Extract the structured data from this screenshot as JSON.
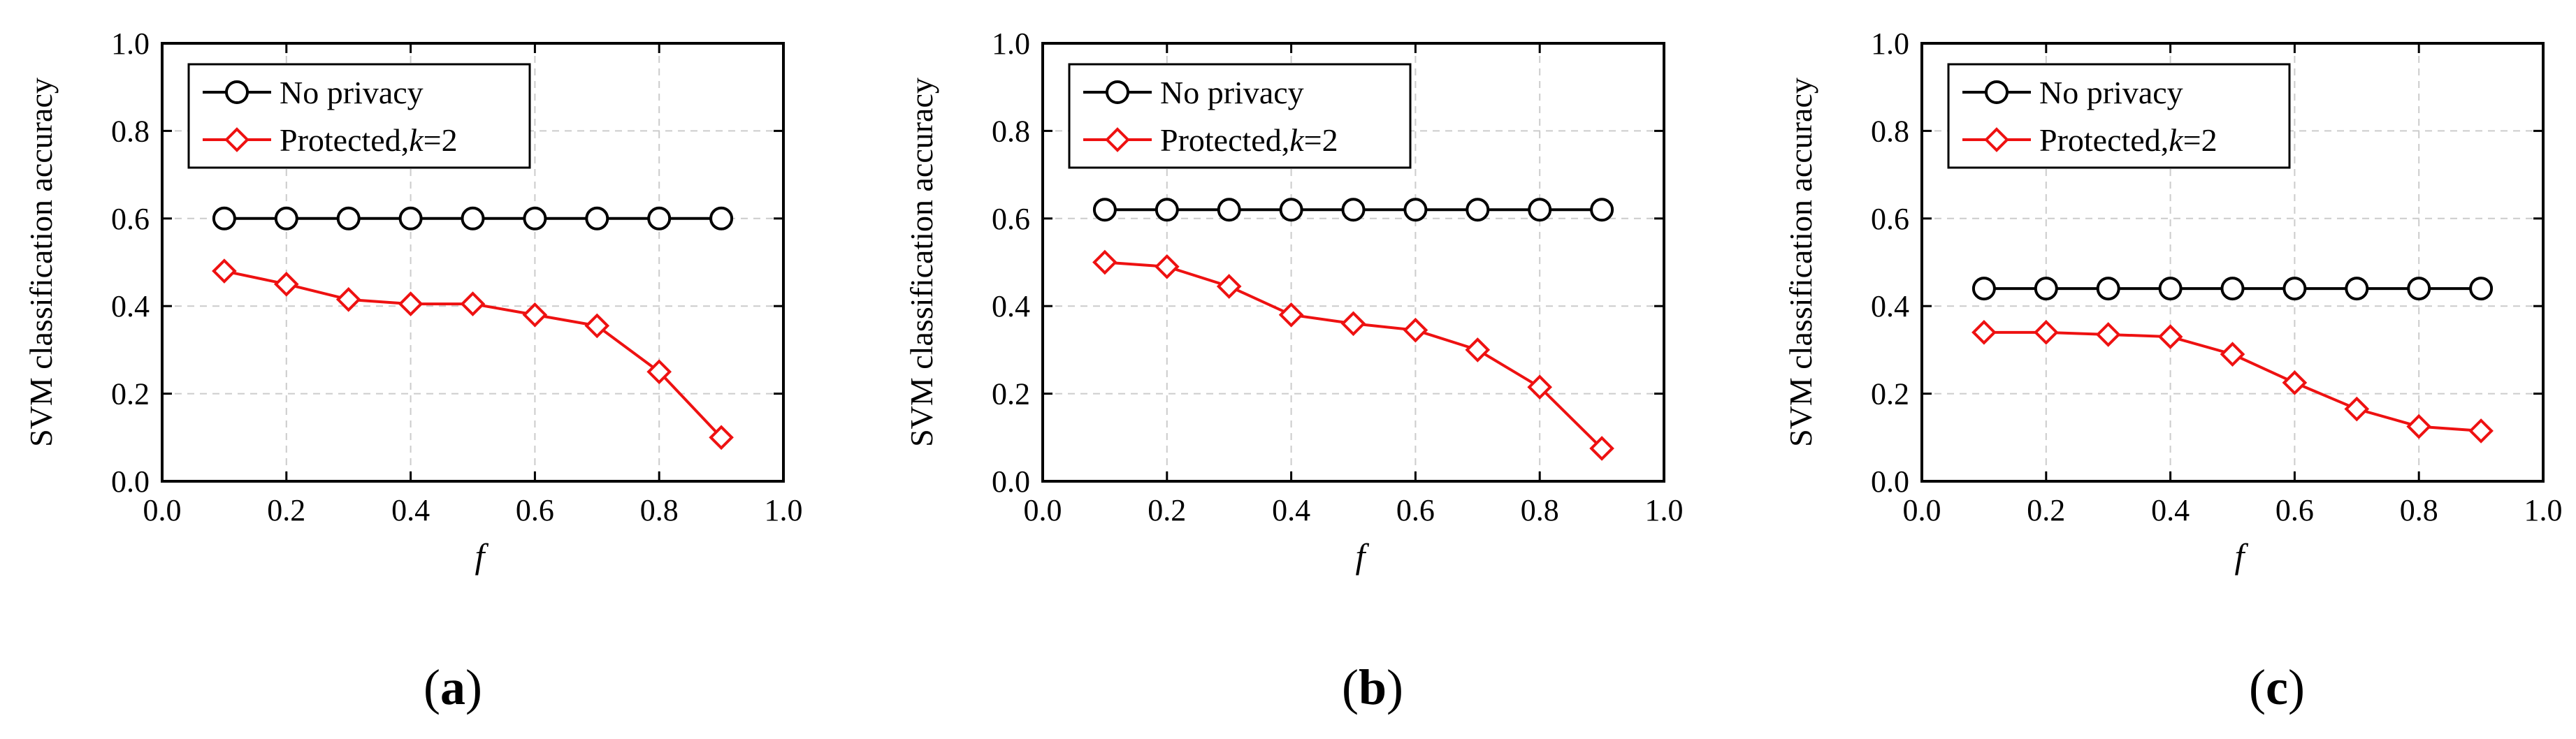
{
  "figure": {
    "captions": [
      "a",
      "b",
      "c"
    ]
  },
  "colors": {
    "no_privacy": "#000000",
    "protected": "#ee1111",
    "grid": "#cccccc"
  },
  "chart_data": [
    {
      "type": "line",
      "panel": "a",
      "xlabel": "f",
      "ylabel": "SVM classification accuracy",
      "xlim": [
        0.0,
        1.0
      ],
      "ylim": [
        0.0,
        1.0
      ],
      "xticks": [
        "0.0",
        "0.2",
        "0.4",
        "0.6",
        "0.8",
        "1.0"
      ],
      "yticks": [
        "0.0",
        "0.2",
        "0.4",
        "0.6",
        "0.8",
        "1.0"
      ],
      "grid": true,
      "legend_position": "top-left",
      "x": [
        0.1,
        0.2,
        0.3,
        0.4,
        0.5,
        0.6,
        0.7,
        0.8,
        0.9
      ],
      "series": [
        {
          "name": "No privacy",
          "legend_label": "No privacy",
          "marker": "circle",
          "values": [
            0.6,
            0.6,
            0.6,
            0.6,
            0.6,
            0.6,
            0.6,
            0.6,
            0.6
          ]
        },
        {
          "name": "Protected, k=2",
          "legend_label": "Protected,",
          "legend_italic": "k",
          "legend_suffix": "=2",
          "marker": "diamond",
          "values": [
            0.48,
            0.45,
            0.415,
            0.405,
            0.405,
            0.38,
            0.355,
            0.25,
            0.1
          ]
        }
      ]
    },
    {
      "type": "line",
      "panel": "b",
      "xlabel": "f",
      "ylabel": "SVM classification accuracy",
      "xlim": [
        0.0,
        1.0
      ],
      "ylim": [
        0.0,
        1.0
      ],
      "xticks": [
        "0.0",
        "0.2",
        "0.4",
        "0.6",
        "0.8",
        "1.0"
      ],
      "yticks": [
        "0.0",
        "0.2",
        "0.4",
        "0.6",
        "0.8",
        "1.0"
      ],
      "grid": true,
      "legend_position": "top-left",
      "x": [
        0.1,
        0.2,
        0.3,
        0.4,
        0.5,
        0.6,
        0.7,
        0.8,
        0.9
      ],
      "series": [
        {
          "name": "No privacy",
          "legend_label": "No privacy",
          "marker": "circle",
          "values": [
            0.62,
            0.62,
            0.62,
            0.62,
            0.62,
            0.62,
            0.62,
            0.62,
            0.62
          ]
        },
        {
          "name": "Protected, k=2",
          "legend_label": "Protected,",
          "legend_italic": "k",
          "legend_suffix": "=2",
          "marker": "diamond",
          "values": [
            0.5,
            0.49,
            0.445,
            0.38,
            0.36,
            0.345,
            0.3,
            0.215,
            0.075
          ]
        }
      ]
    },
    {
      "type": "line",
      "panel": "c",
      "xlabel": "f",
      "ylabel": "SVM classification accuracy",
      "xlim": [
        0.0,
        1.0
      ],
      "ylim": [
        0.0,
        1.0
      ],
      "xticks": [
        "0.0",
        "0.2",
        "0.4",
        "0.6",
        "0.8",
        "1.0"
      ],
      "yticks": [
        "0.0",
        "0.2",
        "0.4",
        "0.6",
        "0.8",
        "1.0"
      ],
      "grid": true,
      "legend_position": "top-left",
      "x": [
        0.1,
        0.2,
        0.3,
        0.4,
        0.5,
        0.6,
        0.7,
        0.8,
        0.9
      ],
      "series": [
        {
          "name": "No privacy",
          "legend_label": "No privacy",
          "marker": "circle",
          "values": [
            0.44,
            0.44,
            0.44,
            0.44,
            0.44,
            0.44,
            0.44,
            0.44,
            0.44
          ]
        },
        {
          "name": "Protected, k=2",
          "legend_label": "Protected,",
          "legend_italic": "k",
          "legend_suffix": "=2",
          "marker": "diamond",
          "values": [
            0.34,
            0.34,
            0.335,
            0.33,
            0.29,
            0.225,
            0.165,
            0.125,
            0.115
          ]
        }
      ]
    }
  ]
}
